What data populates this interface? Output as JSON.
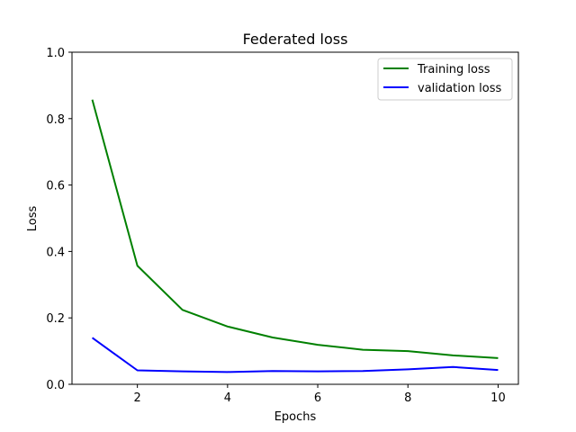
{
  "chart_data": {
    "type": "line",
    "title": "Federated loss",
    "xlabel": "Epochs",
    "ylabel": "Loss",
    "xlim": [
      0.55,
      10.45
    ],
    "ylim": [
      0.0,
      1.0
    ],
    "xticks": [
      2,
      4,
      6,
      8,
      10
    ],
    "xtick_labels": [
      "2",
      "4",
      "6",
      "8",
      "10"
    ],
    "yticks": [
      0.0,
      0.2,
      0.4,
      0.6,
      0.8,
      1.0
    ],
    "ytick_labels": [
      "0.0",
      "0.2",
      "0.4",
      "0.6",
      "0.8",
      "1.0"
    ],
    "grid": false,
    "legend_position": "top-right",
    "x": [
      1,
      2,
      3,
      4,
      5,
      6,
      7,
      8,
      9,
      10
    ],
    "series": [
      {
        "name": "Training loss",
        "color": "#008000",
        "values": [
          0.857,
          0.357,
          0.224,
          0.174,
          0.141,
          0.119,
          0.104,
          0.1,
          0.087,
          0.079
        ]
      },
      {
        "name": "validation loss",
        "color": "#0000ff",
        "values": [
          0.14,
          0.042,
          0.039,
          0.037,
          0.04,
          0.039,
          0.04,
          0.045,
          0.052,
          0.043
        ]
      }
    ]
  }
}
